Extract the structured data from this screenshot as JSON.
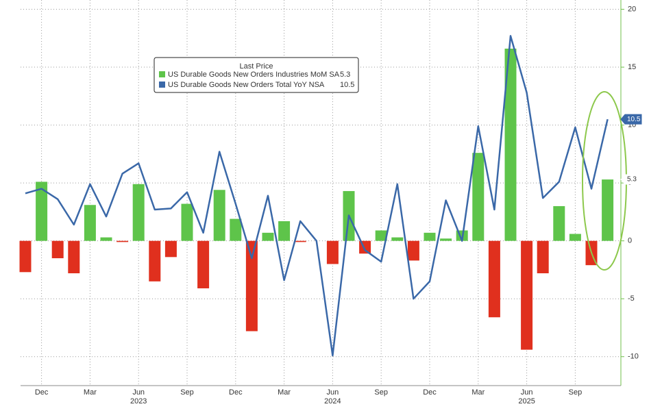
{
  "chart_data": {
    "type": "bar-line",
    "legend_title": "Last Price",
    "categories": [
      null,
      "Dec",
      null,
      null,
      "Mar",
      null,
      null,
      "Jun",
      null,
      null,
      "Sep",
      null,
      null,
      "Dec",
      null,
      null,
      "Mar",
      null,
      null,
      "Jun",
      null,
      null,
      "Sep",
      null,
      null,
      "Dec",
      null,
      null,
      "Mar",
      null,
      null,
      "Jun",
      null,
      null,
      "Sep",
      null,
      null
    ],
    "year_labels": [
      "2023",
      "2024",
      "2025"
    ],
    "series": [
      {
        "name": "US Durable Goods New Orders Industries MoM SA",
        "type": "bar",
        "color": "#5ec44a",
        "negative_color": "#e0301e",
        "values": [
          -2.7,
          5.1,
          -1.5,
          -2.8,
          3.1,
          0.3,
          -0.1,
          4.9,
          -3.5,
          -1.4,
          3.2,
          -4.1,
          4.4,
          1.9,
          -7.8,
          0.7,
          1.7,
          -0.1,
          0,
          -2.0,
          4.3,
          -1.1,
          0.9,
          0.3,
          -1.7,
          0.7,
          0.2,
          0.9,
          7.6,
          -6.6,
          16.6,
          -9.4,
          -2.8,
          3.0,
          0.6,
          -2.1,
          5.3
        ]
      },
      {
        "name": "US Durable Goods New Orders Total YoY NSA",
        "type": "line",
        "color": "#3a68a8",
        "values": [
          4.1,
          4.5,
          3.6,
          1.4,
          4.9,
          2.1,
          5.8,
          6.7,
          2.7,
          2.8,
          4.2,
          0.7,
          7.7,
          3.2,
          -1.5,
          3.9,
          -3.4,
          1.7,
          0,
          -9.9,
          2.2,
          -0.8,
          -1.8,
          4.9,
          -5.0,
          -3.5,
          3.5,
          0.0,
          9.9,
          2.7,
          17.7,
          12.8,
          3.7,
          5.1,
          9.8,
          4.5,
          10.5
        ]
      }
    ],
    "ylim": [
      -12.5,
      20.8
    ],
    "yticks": [
      -10,
      -5,
      0,
      5,
      10,
      15,
      20
    ],
    "grid": true
  }
}
